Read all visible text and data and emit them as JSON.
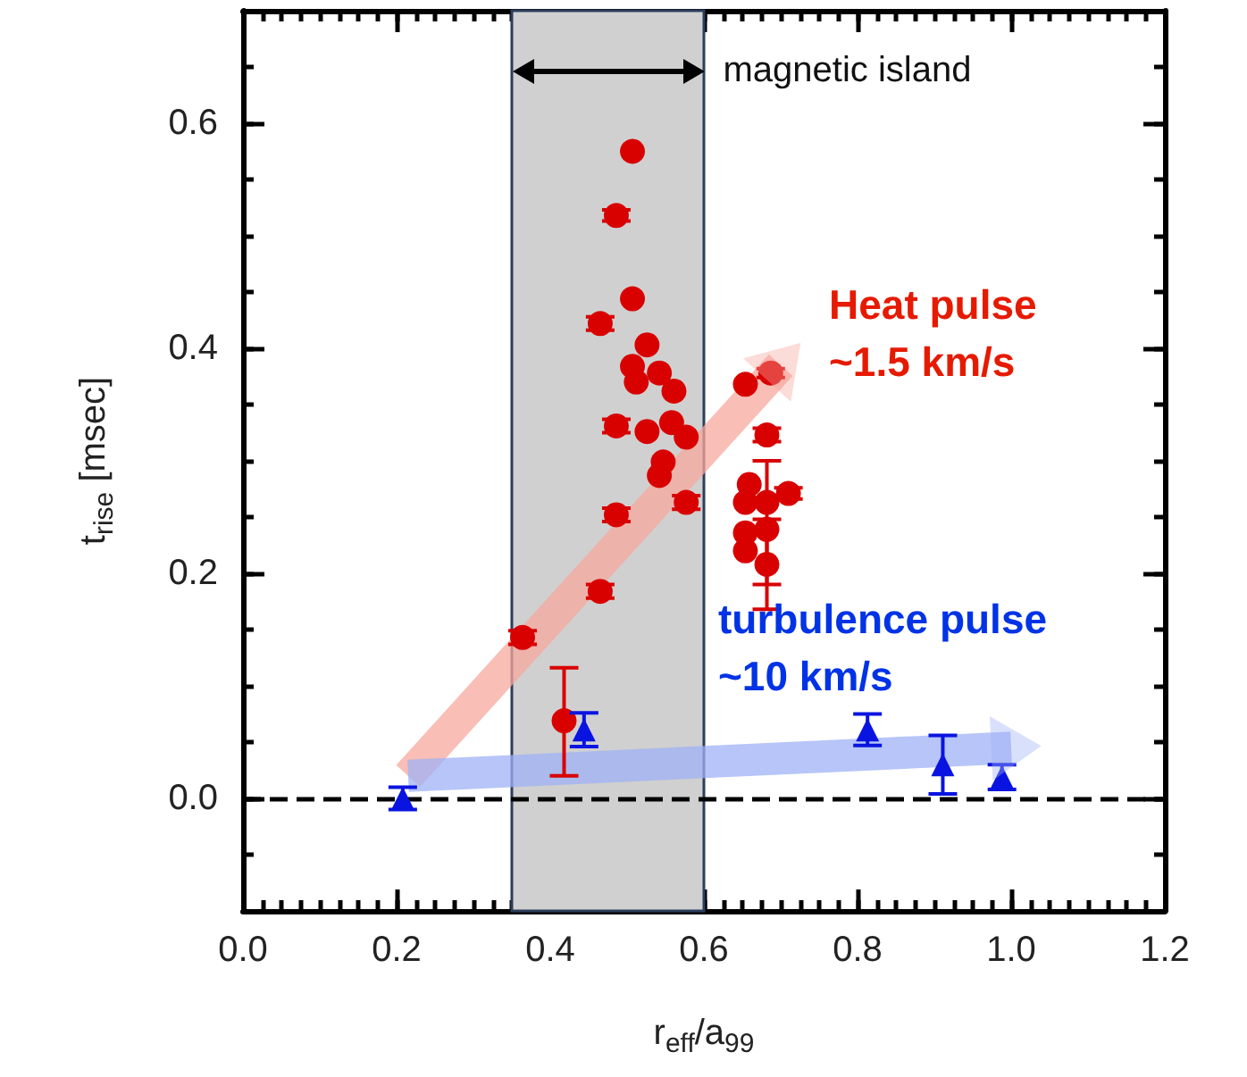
{
  "chart_data": {
    "type": "scatter",
    "xlabel": "r$_{eff}$/a$_{99}$",
    "ylabel": "t$_{rise}$ [msec]",
    "xlim": [
      0,
      1.2
    ],
    "xticks": [
      {
        "value": 0,
        "label": "0.0"
      },
      0.2,
      0.4,
      0.6,
      0.8,
      {
        "value": 1,
        "label": "1.0"
      },
      1.2
    ],
    "ylim": [
      -0.1,
      0.7
    ],
    "yticks": [
      {
        "value": 0,
        "label": "0.0"
      },
      0.2,
      0.4,
      0.6
    ],
    "grid": false,
    "series": [
      {
        "type": "line",
        "color": "#f7a89e",
        "x": [
          0.215,
          0.7
        ],
        "values": [
          0.02,
          0.385
        ]
      },
      {
        "type": "line",
        "color": "#9fb2f5",
        "x": [
          0.215,
          1.0
        ],
        "values": [
          0.02,
          0.045
        ]
      },
      {
        "color": "#d90000",
        "marker": "circle",
        "x": [
          0.364,
          0.465,
          0.418,
          0.486,
          0.486,
          0.507,
          0.486,
          0.507,
          0.465,
          0.526,
          0.507,
          0.542,
          0.512,
          0.561,
          0.526,
          0.558,
          0.577,
          0.547,
          0.542,
          0.577,
          0.654,
          0.687,
          0.682,
          0.682,
          0.71,
          0.659,
          0.654,
          0.682,
          0.654,
          0.654,
          0.682
        ],
        "values": [
          0.143,
          0.184,
          0.069,
          0.252,
          0.331,
          0.575,
          0.518,
          0.444,
          0.422,
          0.403,
          0.384,
          0.378,
          0.37,
          0.362,
          0.326,
          0.334,
          0.321,
          0.299,
          0.287,
          0.263,
          0.368,
          0.378,
          0.323,
          0.239,
          0.271,
          0.279,
          0.263,
          0.263,
          0.236,
          0.22,
          0.208
        ],
        "errors": [
          0.006,
          0.006,
          [
            0.02,
            0.116
          ],
          0.006,
          0.006,
          null,
          0.005,
          null,
          0.006,
          null,
          null,
          null,
          null,
          null,
          null,
          null,
          null,
          null,
          null,
          0.006,
          null,
          0.004,
          0.006,
          [
            0.19,
            0.3
          ],
          0.005,
          null,
          null,
          null,
          null,
          null,
          0.04
        ]
      },
      {
        "color": "#0a14e0",
        "marker": "triangle",
        "x": [
          0.208,
          0.444,
          0.813,
          0.911,
          0.988
        ],
        "values": [
          0.0,
          0.061,
          0.061,
          0.03,
          0.019
        ],
        "errors": [
          0.01,
          0.015,
          0.014,
          0.026,
          0.011
        ]
      }
    ],
    "ref_lines": [
      {
        "axis": "y",
        "value": 0,
        "color": "#000000",
        "line_style": "dashed"
      }
    ],
    "bands": [
      {
        "axis": "x",
        "from": 0.35,
        "to": 0.6,
        "label": "magnetic island",
        "color": "#d0d0d0"
      }
    ],
    "annotations": [
      {
        "text": "Heat pulse\n~1.5 km/s",
        "x": 0.7,
        "y": 0.385
      },
      {
        "text": "turbulence pulse\n~10 km/s",
        "x": 1.0,
        "y": 0.045
      }
    ]
  }
}
